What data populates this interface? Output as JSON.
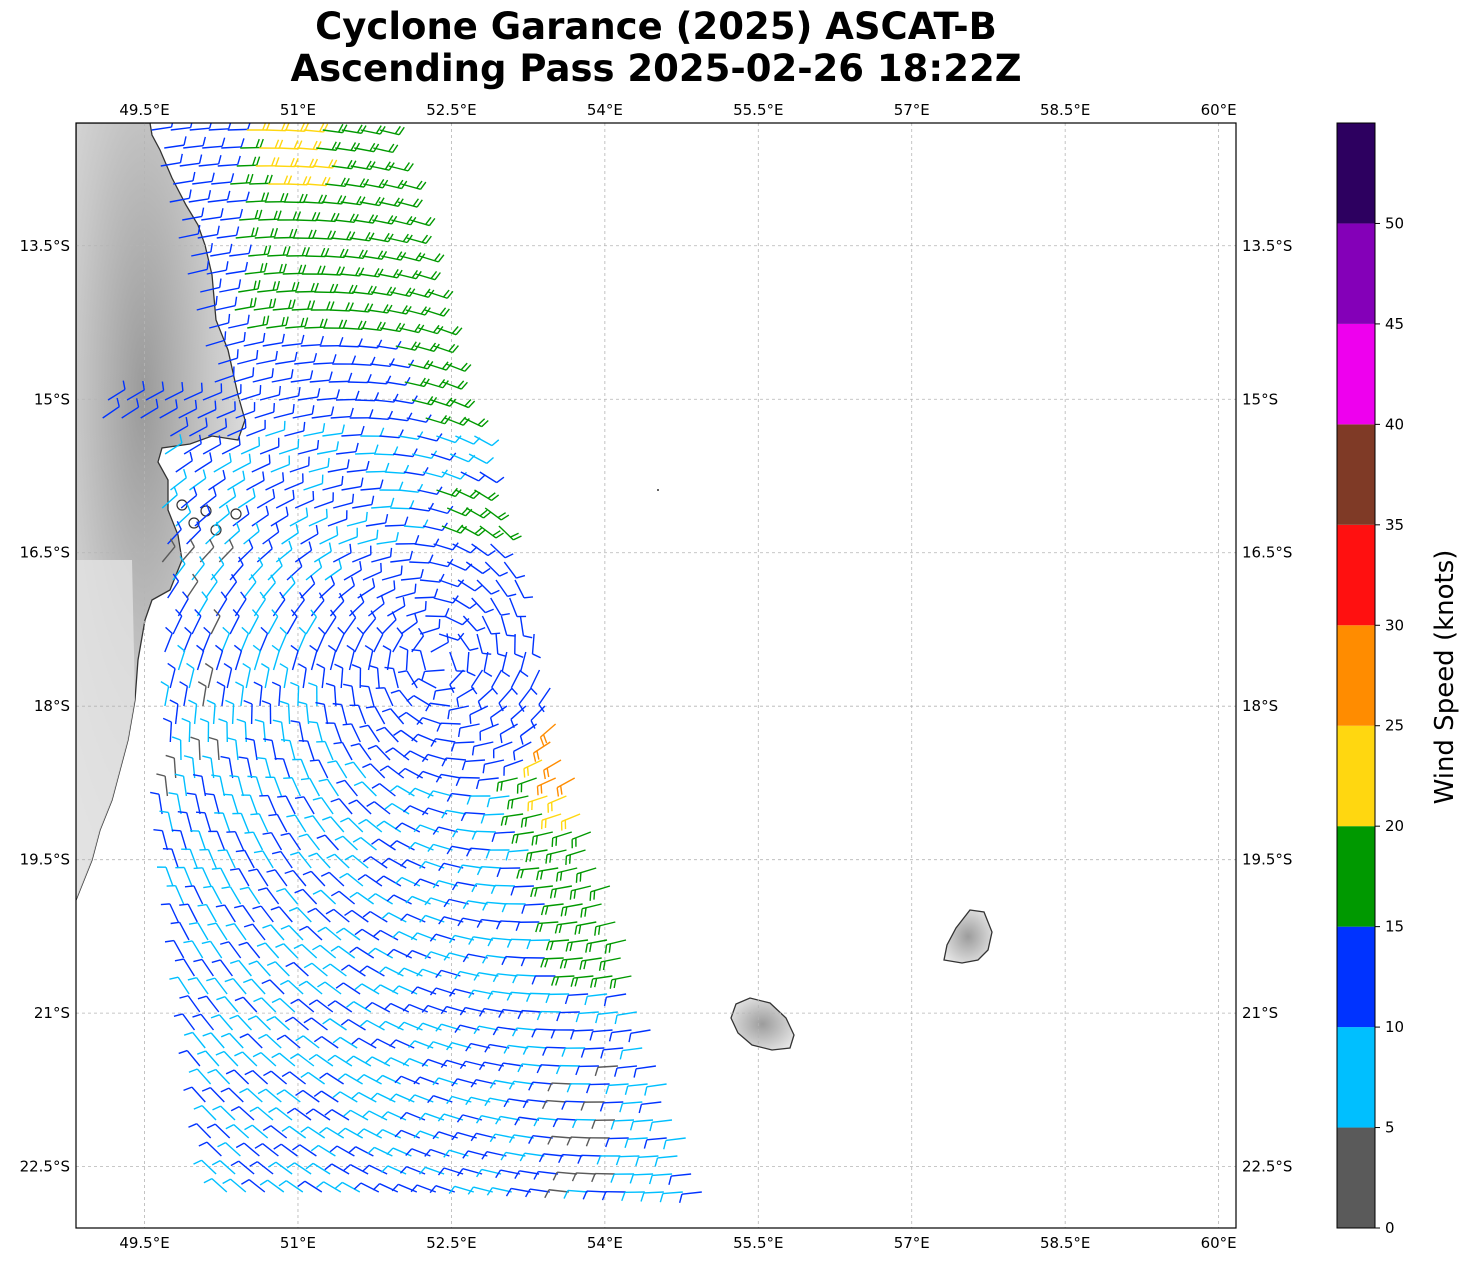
{
  "title": {
    "line1": "Cyclone Garance (2025) ASCAT-B",
    "line2": "Ascending Pass 2025-02-26 18:22Z"
  },
  "axes": {
    "lon_ticks": [
      "49.5°E",
      "51°E",
      "52.5°E",
      "54°E",
      "55.5°E",
      "57°E",
      "58.5°E",
      "60°E"
    ],
    "lat_ticks": [
      "13.5°S",
      "15°S",
      "16.5°S",
      "18°S",
      "19.5°S",
      "21°S",
      "22.5°S"
    ],
    "lon_values": [
      49.5,
      51,
      52.5,
      54,
      55.5,
      57,
      58.5,
      60
    ],
    "lat_values": [
      -13.5,
      -15,
      -16.5,
      -18,
      -19.5,
      -21,
      -22.5
    ],
    "lon_range": [
      48.83,
      60.17
    ],
    "lat_range": [
      -23.1,
      -12.3
    ],
    "grid": true
  },
  "colorbar": {
    "title": "Wind Speed (knots)",
    "bounds": [
      0,
      5,
      10,
      15,
      20,
      25,
      30,
      35,
      40,
      45,
      50,
      55
    ],
    "tick_labels": [
      "0",
      "5",
      "10",
      "15",
      "20",
      "25",
      "30",
      "35",
      "40",
      "45",
      "50"
    ],
    "colors": [
      "#5a5a5a",
      "#00bfff",
      "#0033ff",
      "#009900",
      "#ffd710",
      "#ff8c00",
      "#ff1010",
      "#7f3a26",
      "#ee00ee",
      "#8400b8",
      "#2d0060"
    ]
  },
  "features": {
    "islands": [
      "madagascar-coast",
      "reunion-island",
      "mauritius-island"
    ]
  }
}
